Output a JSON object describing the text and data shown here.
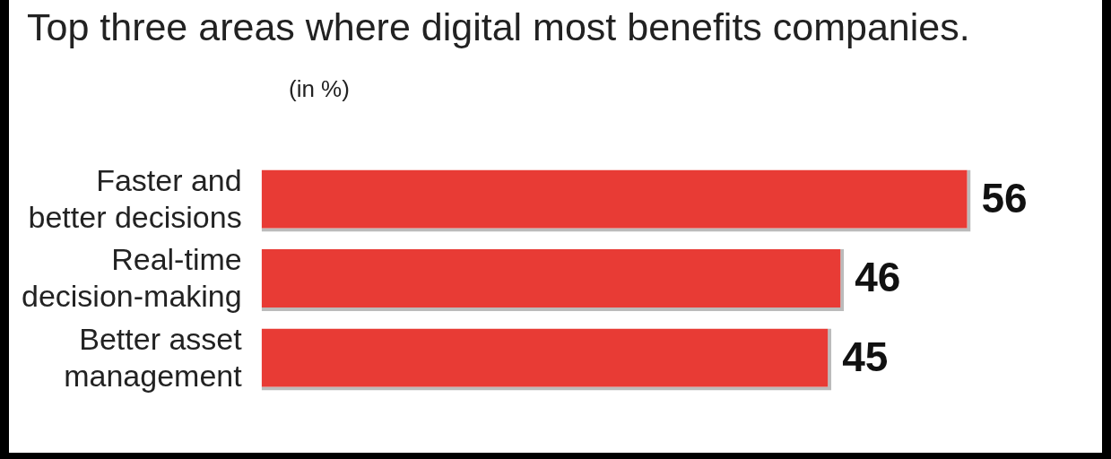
{
  "chart_data": {
    "type": "bar",
    "orientation": "horizontal",
    "title": "Top three areas where digital most benefits companies.",
    "subtitle": "(in %)",
    "categories": [
      "Faster and better decisions",
      "Real-time decision-making",
      "Better asset management"
    ],
    "values": [
      56,
      46,
      45
    ],
    "color": "#e83b35",
    "data_labels": true
  }
}
